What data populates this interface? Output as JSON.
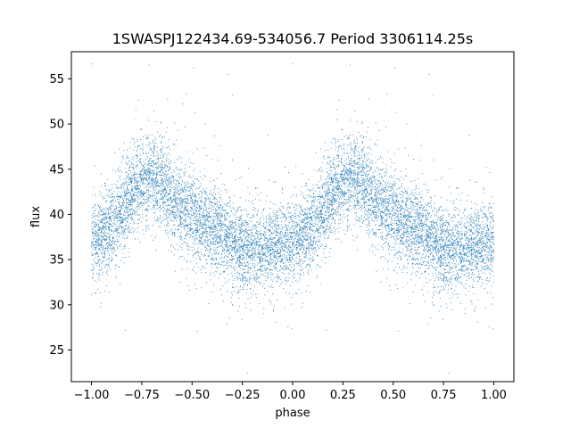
{
  "chart_data": {
    "type": "scatter",
    "title": "1SWASPJ122434.69-534056.7 Period 3306114.25s",
    "xlabel": "phase",
    "ylabel": "flux",
    "xlim": [
      -1.1,
      1.1
    ],
    "ylim": [
      21.5,
      58.0
    ],
    "xticks": [
      {
        "value": -1.0,
        "label": "−1.00"
      },
      {
        "value": -0.75,
        "label": "−0.75"
      },
      {
        "value": -0.5,
        "label": "−0.50"
      },
      {
        "value": -0.25,
        "label": "−0.25"
      },
      {
        "value": 0.0,
        "label": "0.00"
      },
      {
        "value": 0.25,
        "label": "0.25"
      },
      {
        "value": 0.5,
        "label": "0.50"
      },
      {
        "value": 0.75,
        "label": "0.75"
      },
      {
        "value": 1.0,
        "label": "1.00"
      }
    ],
    "yticks": [
      {
        "value": 25,
        "label": "25"
      },
      {
        "value": 30,
        "label": "30"
      },
      {
        "value": 35,
        "label": "35"
      },
      {
        "value": 40,
        "label": "40"
      },
      {
        "value": 45,
        "label": "45"
      },
      {
        "value": 50,
        "label": "50"
      },
      {
        "value": 55,
        "label": "55"
      }
    ],
    "grid": false,
    "marker_color": "#1f77b4",
    "phase_range": [
      -1.0,
      1.0
    ],
    "profile": [
      {
        "phase": 0.0,
        "flux": 37.0
      },
      {
        "phase": 0.05,
        "flux": 37.8
      },
      {
        "phase": 0.1,
        "flux": 38.8
      },
      {
        "phase": 0.15,
        "flux": 40.5
      },
      {
        "phase": 0.2,
        "flux": 42.5
      },
      {
        "phase": 0.25,
        "flux": 43.8
      },
      {
        "phase": 0.3,
        "flux": 44.0
      },
      {
        "phase": 0.35,
        "flux": 43.3
      },
      {
        "phase": 0.4,
        "flux": 42.0
      },
      {
        "phase": 0.45,
        "flux": 40.8
      },
      {
        "phase": 0.5,
        "flux": 39.8
      },
      {
        "phase": 0.55,
        "flux": 39.0
      },
      {
        "phase": 0.6,
        "flux": 38.4
      },
      {
        "phase": 0.65,
        "flux": 37.8
      },
      {
        "phase": 0.7,
        "flux": 37.0
      },
      {
        "phase": 0.75,
        "flux": 36.3
      },
      {
        "phase": 0.8,
        "flux": 36.0
      },
      {
        "phase": 0.85,
        "flux": 36.2
      },
      {
        "phase": 0.9,
        "flux": 36.6
      },
      {
        "phase": 0.95,
        "flux": 37.0
      },
      {
        "phase": 1.0,
        "flux": 37.0
      }
    ],
    "scatter_sigma": 2.4,
    "points_per_cycle": 5200
  }
}
